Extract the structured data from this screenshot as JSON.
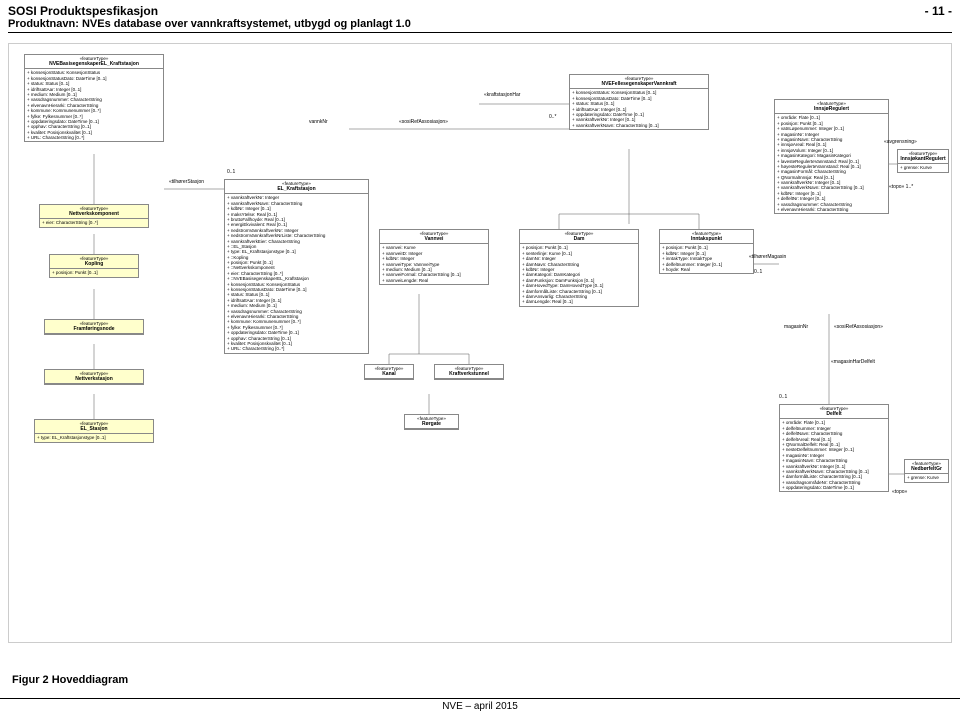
{
  "header": {
    "title": "SOSI Produktspesfikasjon",
    "page": "- 11 -",
    "subtitle": "Produktnavn: NVEs database over vannkraftsystemet, utbygd og planlagt 1.0"
  },
  "caption": "Figur 2 Hoveddiagram",
  "footer": "NVE – april 2015",
  "colors": {
    "yellow": "#ffffcc",
    "border": "#888888",
    "line": "#555555"
  },
  "labels": {
    "vannkNr": "vannkNr",
    "tilhorerStasjon": "«tilhørerStasjon",
    "zeroOne": "0..1",
    "sosiRef": "«sosiRefAssosiasjon»",
    "kraftstasjonHar": "«kraftstasjonHar",
    "zeroStar": "0..*",
    "avgrensning": "«avgrensning»",
    "topo1": "«topo»   1..*",
    "tilhorerMagasin": "«tilhørerMagasin",
    "magasinNr": "magasinNr",
    "magasinHarDelfelt": "«magasinHarDelfelt",
    "topo": "«topo»",
    "zeroOne2": "0..1"
  },
  "boxes": {
    "nveBasis": {
      "stereo": "«featureType»",
      "name": "NVEBasisegenskaperEL_Kraftstasjon",
      "attrs": [
        "konsesjonStatus: KonsesjonStatus",
        "konsesjonStatusDato: DateTime [0..1]",
        "status: Status [0..1]",
        "idriftsattAar: Integer [0..1]",
        "medium: Medium [0..1]",
        "vassdragsnummer: CharacterString",
        "elvenavnHierarki: CharacterString",
        "kommune: Kommunenummer [0..*]",
        "fylke: Fylkesnummer [0..*]",
        "oppdateringsdato: DateTime [0..1]",
        "opphav: CharacterString [0..1]",
        "kvalitet: Posisjonskvalitet [0..1]",
        "URL: CharacterString [0..*]"
      ]
    },
    "nettverkskomponent": {
      "stereo": "«featureType»",
      "name": "Nettverkskomponent",
      "attrs": [
        "eier: CharacterString [0..*]"
      ]
    },
    "kopling": {
      "stereo": "«featureType»",
      "name": "Kopling",
      "attrs": [
        "posisjon: Punkt [0..1]"
      ]
    },
    "framforingsnode": {
      "stereo": "«featureType»",
      "name": "Framføringsnode",
      "attrs": []
    },
    "nettverkstasjon": {
      "stereo": "«featureType»",
      "name": "Nettverkstasjon",
      "attrs": []
    },
    "elStasjon": {
      "stereo": "«featureType»",
      "name": "EL_Stasjon",
      "attrs": [
        "type: EL_Kraftstasjonstype [0..1]"
      ]
    },
    "elKraftstasjon": {
      "stereo": "«featureType»",
      "name": "EL_Kraftstasjon",
      "attrs": [
        "vannkraftverkNr: Integer",
        "vannkraftverkNavn: CharacterString",
        "kdbNr: Integer [0..1]",
        "maksYtelse: Real [0..1]",
        "bruttoFallhoyde: Real [0..1]",
        "energiEkvivalent: Real [0..1]",
        "nedstromVannkraftverkNr: Integer",
        "nedstromVannkraftverkNrListe: CharacterString",
        "vannkraftverkEier: CharacterString",
        "::EL_Stasjon",
        "  type: EL_Kraftstasjonstype [0..1]",
        "::Kopling",
        "  posisjon: Punkt [0..1]",
        "::Nettverkskomponent",
        "  eier: CharacterString [0..*]",
        "::NVEBasisegenskaperEL_Kraftstasjon",
        "  konsesjonStatus: KonsesjonStatus",
        "  konsesjonStatusDato: DateTime [0..1]",
        "  status: Status [0..1]",
        "  idriftsattAar: Integer [0..1]",
        "  medium: Medium [0..1]",
        "  vassdragsnummer: CharacterString",
        "  elvenavnHierarki: CharacterString",
        "  kommune: Kommunenummer [0..*]",
        "  fylke: Fylkesnummer [0..*]",
        "  oppdateringsdato: DateTime [0..1]",
        "  opphav: CharacterString [0..1]",
        "  kvalitet: Posisjonskvalitet [0..1]",
        "  URL: CharacterString [0..*]"
      ]
    },
    "vannvei": {
      "stereo": "«featureType»",
      "name": "Vannvei",
      "attrs": [
        "vannvei: Kurve",
        "vannveiID: Integer",
        "kdbNr: Integer",
        "vannveiType: VannveiType",
        "medium: Medium [0..1]",
        "vannveiFormal: CharacterString [0..1]",
        "vannveiLengde: Real"
      ]
    },
    "kanal": {
      "stereo": "«featureType»",
      "name": "Kanal",
      "attrs": []
    },
    "kraftverkstunnel": {
      "stereo": "«featureType»",
      "name": "Kraftverkstunnel",
      "attrs": []
    },
    "rorgate": {
      "stereo": "«featureType»",
      "name": "Rørgate",
      "attrs": []
    },
    "nveFelles": {
      "stereo": "«featureType»",
      "name": "NVEFellesegenskaperVannkraft",
      "attrs": [
        "konsesjonStatus: KonsesjonStatus [0..1]",
        "konsesjonStatusDato: DateTime [0..1]",
        "status: Status [0..1]",
        "idriftsattAar: Integer [0..1]",
        "oppdateringsdato: DateTime [0..1]",
        "vannkraftverkNr: Integer [0..1]",
        "vannkraftverkNavn: CharacterString [0..1]"
      ]
    },
    "dam": {
      "stereo": "«featureType»",
      "name": "Dam",
      "attrs": [
        "posisjon: Punkt [0..1]",
        "senterlinje: Kurve [0..1]",
        "damNr: Integer",
        "damNavn: CharacterString",
        "kdbNr: Integer",
        "damKategori: DamKategori",
        "damFunksjon: DamFunksjon [0..1]",
        "damHovedType: DamHovedType [0..1]",
        "damformålListe: CharacterString [0..1]",
        "damAnsvarlig: CharacterString",
        "damLengde: Real [0..1]"
      ]
    },
    "inntakspunkt": {
      "stereo": "«featureType»",
      "name": "Inntakspunkt",
      "attrs": [
        "posisjon: Punkt [0..1]",
        "kdbNr: Integer [0..1]",
        "inntakType: InntakType",
        "delfeltnummer: Integer [0..1]",
        "hoyde: Real"
      ]
    },
    "innsjoRegulert": {
      "stereo": "«featureType»",
      "name": "InnsjøRegulert",
      "attrs": [
        "område: Flate [0..1]",
        "posisjon: Punkt [0..1]",
        "vatnLøpenummer: Integer [0..1]",
        "magasinNr: Integer",
        "magasinNavn: CharacterString",
        "innsjøAreal: Real [0..1]",
        "innsjøVolum: Integer [0..1]",
        "magasinKategori: MagasinKategori",
        "lavesteRegulerteVannstand: Real [0..1]",
        "høyesteRegulerteVannstand: Real [0..1]",
        "magasinFormål: CharacterString",
        "QNormalInnsjø: Real [0..1]",
        "vannkraftverkNr: Integer [0..1]",
        "vannkraftverkNavn: CharacterString [0..1]",
        "kdbNr: Integer [0..1]",
        "delfeltNr: Integer [0..1]",
        "vassdragsnummer: CharacterString",
        "elvenavnHierarki: CharacterString"
      ]
    },
    "innsjokantRegulert": {
      "stereo": "«featureType»",
      "name": "InnsjøkantRegulert",
      "attrs": [
        "grense: Kurve"
      ]
    },
    "delfelt": {
      "stereo": "«featureType»",
      "name": "Delfelt",
      "attrs": [
        "område: Flate [0..1]",
        "delfeltnummer: Integer",
        "delfeltNavn: CharacterString",
        "delfeltAreal: Real [0..1]",
        "QNormalDelfelt: Real [0..1]",
        "nesteDelfeltnummer: Integer [0..1]",
        "magasinNr: Integer",
        "magasinNavn: CharacterString",
        "vannkraftverkNr: Integer [0..1]",
        "vannkraftverkNavn: CharacterString [0..1]",
        "damformålListe: CharacterString [0..1]",
        "vassdragsområdeNr: CharacterString",
        "oppdateringsdato: DateTime [0..1]"
      ]
    },
    "nedborfeltGr": {
      "stereo": "«featureType»",
      "name": "NedbørfeltGr",
      "attrs": [
        "grense: Kurve"
      ]
    }
  }
}
